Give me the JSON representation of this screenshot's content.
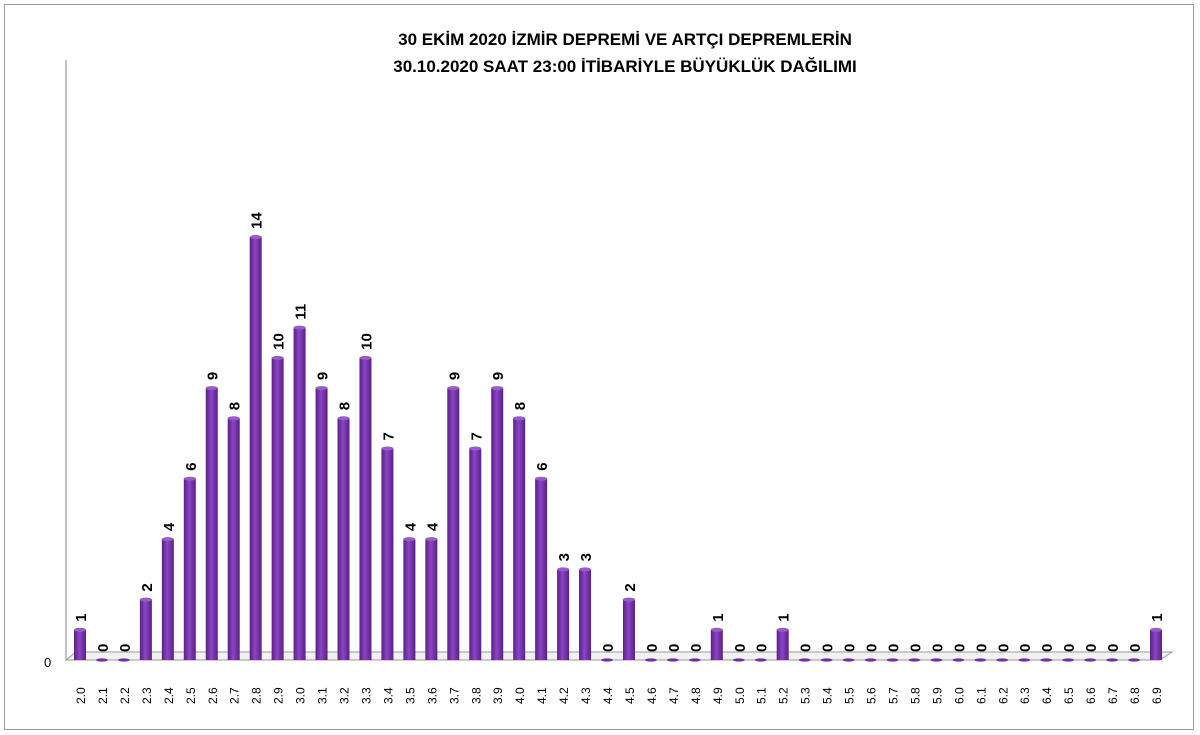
{
  "chart_data": {
    "type": "bar",
    "title": [
      "30 EKİM 2020 İZMİR DEPREMİ VE ARTÇI DEPREMLERİN",
      "30.10.2020 SAAT 23:00 İTİBARİYLE  BÜYÜKLÜK DAĞILIMI"
    ],
    "xlabel": "",
    "ylabel": "",
    "ylim": [
      0,
      14
    ],
    "y_tick_labels": [
      "0"
    ],
    "grid": false,
    "legend": "none",
    "bar_color": "#7030a0",
    "categories": [
      "2.0",
      "2.1",
      "2.2",
      "2.3",
      "2.4",
      "2.5",
      "2.6",
      "2.7",
      "2.8",
      "2.9",
      "3.0",
      "3.1",
      "3.2",
      "3.3",
      "3.4",
      "3.5",
      "3.6",
      "3.7",
      "3.8",
      "3.9",
      "4.0",
      "4.1",
      "4.2",
      "4.3",
      "4.4",
      "4.5",
      "4.6",
      "4.7",
      "4.8",
      "4.9",
      "5.0",
      "5.1",
      "5.2",
      "5.3",
      "5.4",
      "5.5",
      "5.6",
      "5.7",
      "5.8",
      "5.9",
      "6.0",
      "6.1",
      "6.2",
      "6.3",
      "6.4",
      "6.5",
      "6.6",
      "6.7",
      "6.8",
      "6.9"
    ],
    "values": [
      1,
      0,
      0,
      2,
      4,
      6,
      9,
      8,
      14,
      10,
      11,
      9,
      8,
      10,
      7,
      4,
      4,
      9,
      7,
      9,
      8,
      6,
      3,
      3,
      0,
      2,
      0,
      0,
      0,
      1,
      0,
      0,
      1,
      0,
      0,
      0,
      0,
      0,
      0,
      0,
      0,
      0,
      0,
      0,
      0,
      0,
      0,
      0,
      0,
      1
    ]
  }
}
